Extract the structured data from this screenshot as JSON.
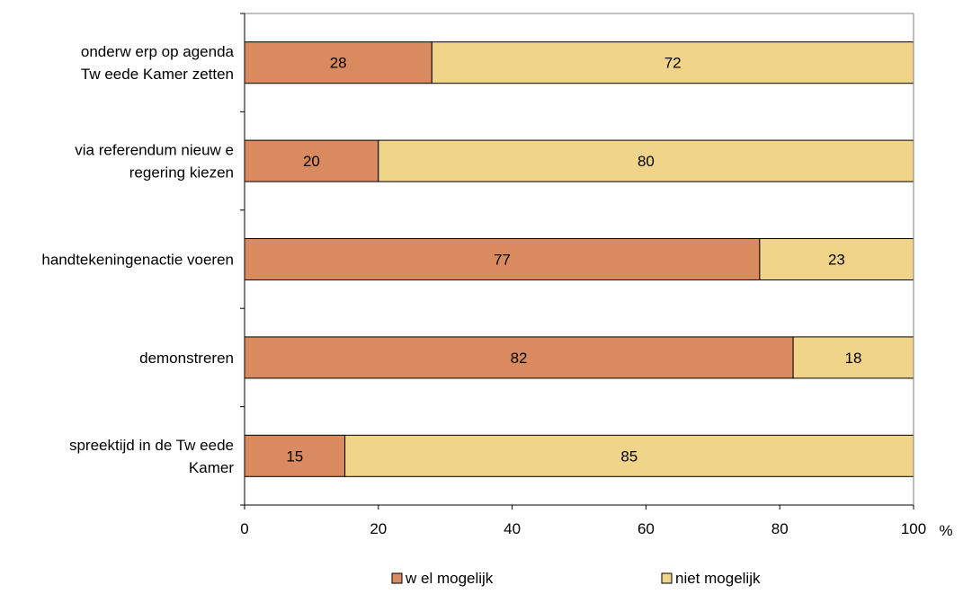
{
  "chart_data": {
    "type": "bar",
    "orientation": "horizontal",
    "stacked": true,
    "categories": [
      [
        "onderw erp op agenda",
        "Tw eede Kamer zetten"
      ],
      [
        "via referendum nieuw e",
        "regering kiezen"
      ],
      [
        "handtekeningenactie voeren"
      ],
      [
        "demonstreren"
      ],
      [
        "spreektijd in de Tw eede",
        "Kamer"
      ]
    ],
    "series": [
      {
        "name": "w el mogelijk",
        "values": [
          28,
          20,
          77,
          82,
          15
        ],
        "color": "#D98B5F"
      },
      {
        "name": "niet mogelijk",
        "values": [
          72,
          80,
          23,
          18,
          85
        ],
        "color": "#F0D48A"
      }
    ],
    "xlim": [
      0,
      100
    ],
    "xticks": [
      0,
      20,
      40,
      60,
      80,
      100
    ],
    "xlabel": "%",
    "grid": false,
    "legend_position": "bottom"
  }
}
